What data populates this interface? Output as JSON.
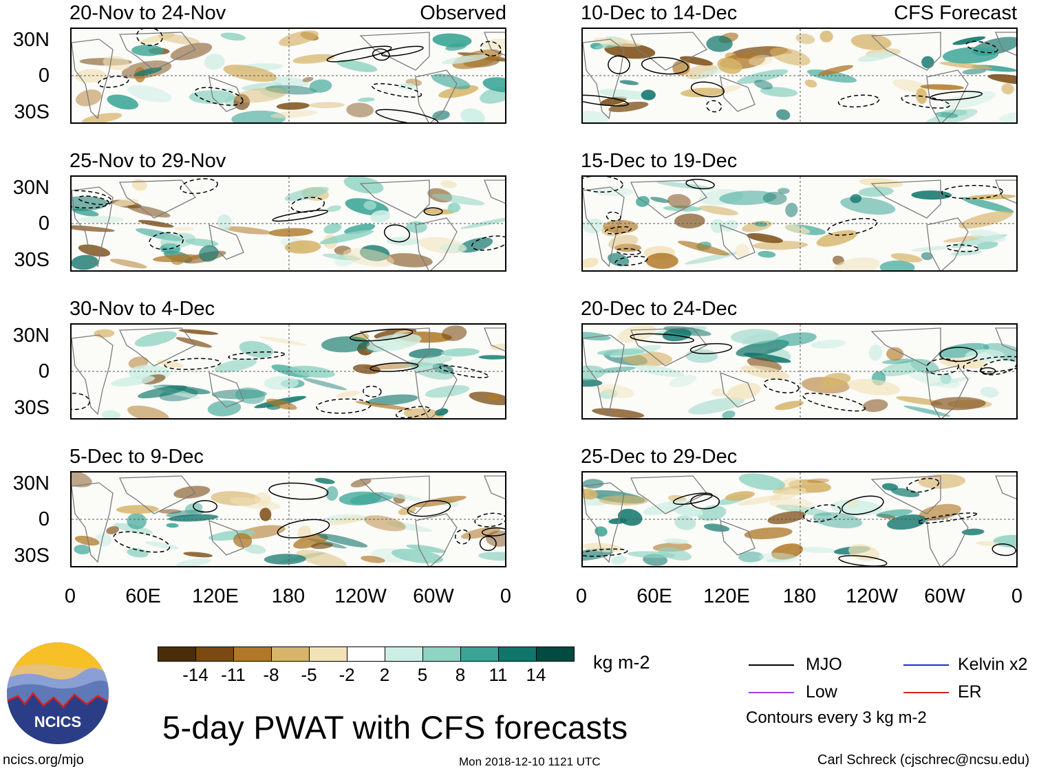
{
  "panels": [
    {
      "title": "20-Nov to 24-Nov",
      "label": "Observed",
      "col": 0,
      "row": 0
    },
    {
      "title": "25-Nov to 29-Nov",
      "label": "",
      "col": 0,
      "row": 1
    },
    {
      "title": "30-Nov to 4-Dec",
      "label": "",
      "col": 0,
      "row": 2
    },
    {
      "title": "5-Dec to 9-Dec",
      "label": "",
      "col": 0,
      "row": 3
    },
    {
      "title": "10-Dec to 14-Dec",
      "label": "CFS Forecast",
      "col": 1,
      "row": 0
    },
    {
      "title": "15-Dec to 19-Dec",
      "label": "",
      "col": 1,
      "row": 1
    },
    {
      "title": "20-Dec to 24-Dec",
      "label": "",
      "col": 1,
      "row": 2
    },
    {
      "title": "25-Dec to 29-Dec",
      "label": "",
      "col": 1,
      "row": 3
    }
  ],
  "latitude_labels": [
    "30N",
    "0",
    "30S"
  ],
  "longitude_labels": [
    "0",
    "60E",
    "120E",
    "180",
    "120W",
    "60W",
    "0"
  ],
  "colorbar": {
    "colors": [
      "#4a2e0c",
      "#7a4a12",
      "#b07828",
      "#d6b46a",
      "#f1e2b8",
      "#ffffff",
      "#cdeee4",
      "#8fd3c2",
      "#3aa596",
      "#10766c",
      "#034a40"
    ],
    "labels": [
      "-14",
      "-11",
      "-8",
      "-5",
      "-2",
      "2",
      "5",
      "8",
      "11",
      "14"
    ],
    "units": "kg m-2"
  },
  "title": "5-day PWAT with CFS forecasts",
  "legend": {
    "items": [
      {
        "label": "MJO",
        "color": "#000000"
      },
      {
        "label": "Kelvin x2",
        "color": "#1a2fd0"
      },
      {
        "label": "Low",
        "color": "#9b3fe0"
      },
      {
        "label": "ER",
        "color": "#d92121"
      }
    ],
    "note": "Contours every 3 kg m-2"
  },
  "logo": {
    "text": "NCICS"
  },
  "footer": {
    "url": "ncics.org/mjo",
    "timestamp": "Mon 2018-12-10 1121 UTC",
    "credit": "Carl Schreck (cjschrec@ncsu.edu)"
  }
}
